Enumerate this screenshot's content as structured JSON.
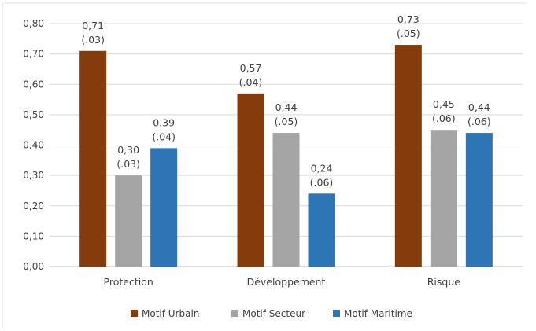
{
  "chart_data": {
    "type": "bar",
    "categories": [
      "Protection",
      "Développement",
      "Risque"
    ],
    "series": [
      {
        "name": "Motif Urbain",
        "color": "#843C0C",
        "values": [
          0.71,
          0.57,
          0.73
        ],
        "labels": [
          "0,71",
          "0,57",
          "0,73"
        ],
        "se_labels": [
          "(.03)",
          "(.04)",
          "(.05)"
        ]
      },
      {
        "name": "Motif Secteur",
        "color": "#A5A5A5",
        "values": [
          0.3,
          0.44,
          0.45
        ],
        "labels": [
          "0,30",
          "0,44",
          "0,45"
        ],
        "se_labels": [
          "(.03)",
          "(.05)",
          "(.06)"
        ]
      },
      {
        "name": "Motif Maritime",
        "color": "#2E75B6",
        "values": [
          0.39,
          0.24,
          0.44
        ],
        "labels": [
          "0.39",
          "0,24",
          "0,44"
        ],
        "se_labels": [
          "(.04)",
          "(.06)",
          "(.06)"
        ]
      }
    ],
    "yticks": [
      "0,00",
      "0,10",
      "0,20",
      "0,30",
      "0,40",
      "0,50",
      "0,60",
      "0,70",
      "0,80"
    ],
    "ylim": [
      0,
      0.8
    ],
    "grid": true,
    "legend": "bottom",
    "gridColor": "#D9D9D9",
    "textColor": "#404040"
  }
}
